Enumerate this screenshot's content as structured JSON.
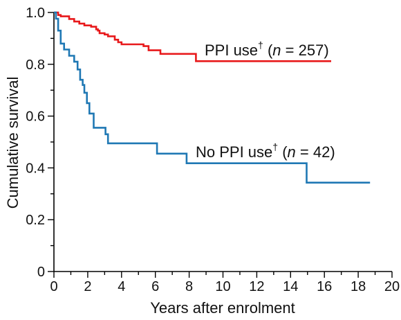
{
  "chart_data": {
    "type": "line",
    "xlabel": "Years after enrolment",
    "ylabel": "Cumulative survival",
    "xlim": [
      0,
      20
    ],
    "ylim": [
      0,
      1.0
    ],
    "x_ticks": [
      0,
      2,
      4,
      6,
      8,
      10,
      12,
      14,
      16,
      18,
      20
    ],
    "y_ticks": [
      0,
      0.2,
      0.4,
      0.6,
      0.8,
      1.0
    ],
    "y_tick_labels": [
      "0",
      "0.2",
      "0.4",
      "0.6",
      "0.8",
      "1.0"
    ],
    "grid": false,
    "series": [
      {
        "key": "ppi",
        "label_prefix": "PPI use",
        "label_mark": "†",
        "label_n": "n",
        "label_value": "= 257)",
        "color": "#e8191b",
        "steps": [
          [
            0,
            1.0
          ],
          [
            0.25,
            0.99
          ],
          [
            0.4,
            0.985
          ],
          [
            0.9,
            0.975
          ],
          [
            1.2,
            0.965
          ],
          [
            1.5,
            0.957
          ],
          [
            1.8,
            0.95
          ],
          [
            2.2,
            0.945
          ],
          [
            2.5,
            0.935
          ],
          [
            2.6,
            0.93
          ],
          [
            2.7,
            0.92
          ],
          [
            3.0,
            0.915
          ],
          [
            3.2,
            0.908
          ],
          [
            3.6,
            0.895
          ],
          [
            3.8,
            0.885
          ],
          [
            4.0,
            0.877
          ],
          [
            5.3,
            0.87
          ],
          [
            5.6,
            0.854
          ],
          [
            6.3,
            0.84
          ],
          [
            8.4,
            0.812
          ],
          [
            16.4,
            0.812
          ]
        ]
      },
      {
        "key": "no_ppi",
        "label_prefix": "No PPI use",
        "label_mark": "†",
        "label_n": "n",
        "label_value": "= 42)",
        "color": "#1f78b4",
        "steps": [
          [
            0,
            1.0
          ],
          [
            0.12,
            0.976
          ],
          [
            0.25,
            0.93
          ],
          [
            0.4,
            0.88
          ],
          [
            0.6,
            0.857
          ],
          [
            0.9,
            0.833
          ],
          [
            1.2,
            0.81
          ],
          [
            1.4,
            0.78
          ],
          [
            1.55,
            0.74
          ],
          [
            1.7,
            0.72
          ],
          [
            1.8,
            0.69
          ],
          [
            1.95,
            0.65
          ],
          [
            2.1,
            0.61
          ],
          [
            2.35,
            0.555
          ],
          [
            3.05,
            0.53
          ],
          [
            3.2,
            0.495
          ],
          [
            6.1,
            0.455
          ],
          [
            7.85,
            0.418
          ],
          [
            14.95,
            0.343
          ],
          [
            18.7,
            0.343
          ]
        ]
      }
    ]
  }
}
